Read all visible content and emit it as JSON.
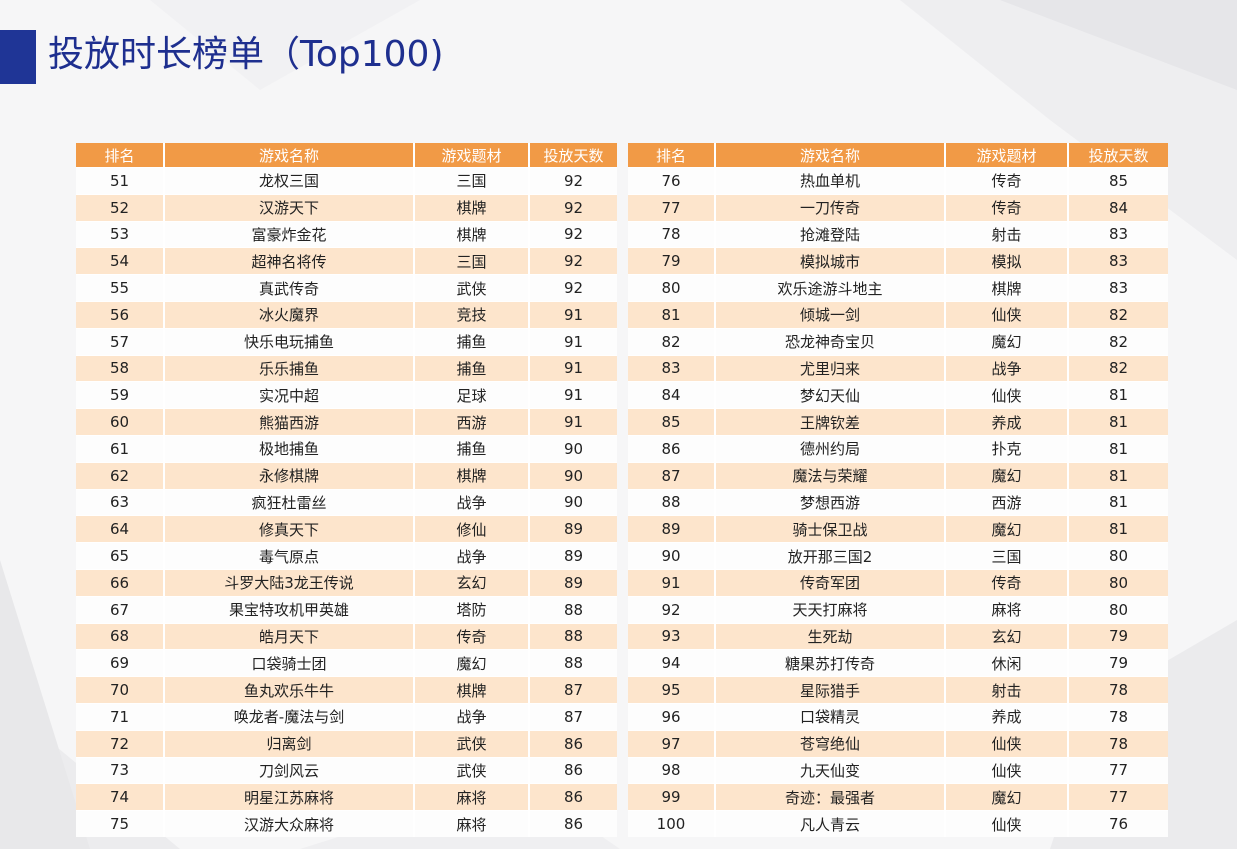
{
  "title": "投放时长榜单（Top100)",
  "colors": {
    "accent": "#1f3596",
    "header": "#f19a46",
    "stripe": "#fde5cc"
  },
  "headers": {
    "rank": "排名",
    "name": "游戏名称",
    "genre": "游戏题材",
    "days": "投放天数"
  },
  "left_rows": [
    {
      "rank": "51",
      "name": "龙权三国",
      "genre": "三国",
      "days": "92"
    },
    {
      "rank": "52",
      "name": "汉游天下",
      "genre": "棋牌",
      "days": "92"
    },
    {
      "rank": "53",
      "name": "富豪炸金花",
      "genre": "棋牌",
      "days": "92"
    },
    {
      "rank": "54",
      "name": "超神名将传",
      "genre": "三国",
      "days": "92"
    },
    {
      "rank": "55",
      "name": "真武传奇",
      "genre": "武侠",
      "days": "92"
    },
    {
      "rank": "56",
      "name": "冰火魔界",
      "genre": "竞技",
      "days": "91"
    },
    {
      "rank": "57",
      "name": "快乐电玩捕鱼",
      "genre": "捕鱼",
      "days": "91"
    },
    {
      "rank": "58",
      "name": "乐乐捕鱼",
      "genre": "捕鱼",
      "days": "91"
    },
    {
      "rank": "59",
      "name": "实况中超",
      "genre": "足球",
      "days": "91"
    },
    {
      "rank": "60",
      "name": "熊猫西游",
      "genre": "西游",
      "days": "91"
    },
    {
      "rank": "61",
      "name": "极地捕鱼",
      "genre": "捕鱼",
      "days": "90"
    },
    {
      "rank": "62",
      "name": "永修棋牌",
      "genre": "棋牌",
      "days": "90"
    },
    {
      "rank": "63",
      "name": "疯狂杜雷丝",
      "genre": "战争",
      "days": "90"
    },
    {
      "rank": "64",
      "name": "修真天下",
      "genre": "修仙",
      "days": "89"
    },
    {
      "rank": "65",
      "name": "毒气原点",
      "genre": "战争",
      "days": "89"
    },
    {
      "rank": "66",
      "name": "斗罗大陆3龙王传说",
      "genre": "玄幻",
      "days": "89"
    },
    {
      "rank": "67",
      "name": "果宝特攻机甲英雄",
      "genre": "塔防",
      "days": "88"
    },
    {
      "rank": "68",
      "name": "皓月天下",
      "genre": "传奇",
      "days": "88"
    },
    {
      "rank": "69",
      "name": "口袋骑士团",
      "genre": "魔幻",
      "days": "88"
    },
    {
      "rank": "70",
      "name": "鱼丸欢乐牛牛",
      "genre": "棋牌",
      "days": "87"
    },
    {
      "rank": "71",
      "name": "唤龙者-魔法与剑",
      "genre": "战争",
      "days": "87"
    },
    {
      "rank": "72",
      "name": "归离剑",
      "genre": "武侠",
      "days": "86"
    },
    {
      "rank": "73",
      "name": "刀剑风云",
      "genre": "武侠",
      "days": "86"
    },
    {
      "rank": "74",
      "name": "明星江苏麻将",
      "genre": "麻将",
      "days": "86"
    },
    {
      "rank": "75",
      "name": "汉游大众麻将",
      "genre": "麻将",
      "days": "86"
    }
  ],
  "right_rows": [
    {
      "rank": "76",
      "name": "热血单机",
      "genre": "传奇",
      "days": "85"
    },
    {
      "rank": "77",
      "name": "一刀传奇",
      "genre": "传奇",
      "days": "84"
    },
    {
      "rank": "78",
      "name": "抢滩登陆",
      "genre": "射击",
      "days": "83"
    },
    {
      "rank": "79",
      "name": "模拟城市",
      "genre": "模拟",
      "days": "83"
    },
    {
      "rank": "80",
      "name": "欢乐途游斗地主",
      "genre": "棋牌",
      "days": "83"
    },
    {
      "rank": "81",
      "name": "倾城一剑",
      "genre": "仙侠",
      "days": "82"
    },
    {
      "rank": "82",
      "name": "恐龙神奇宝贝",
      "genre": "魔幻",
      "days": "82"
    },
    {
      "rank": "83",
      "name": "尤里归来",
      "genre": "战争",
      "days": "82"
    },
    {
      "rank": "84",
      "name": "梦幻天仙",
      "genre": "仙侠",
      "days": "81"
    },
    {
      "rank": "85",
      "name": "王牌钦差",
      "genre": "养成",
      "days": "81"
    },
    {
      "rank": "86",
      "name": "德州约局",
      "genre": "扑克",
      "days": "81"
    },
    {
      "rank": "87",
      "name": "魔法与荣耀",
      "genre": "魔幻",
      "days": "81"
    },
    {
      "rank": "88",
      "name": "梦想西游",
      "genre": "西游",
      "days": "81"
    },
    {
      "rank": "89",
      "name": "骑士保卫战",
      "genre": "魔幻",
      "days": "81"
    },
    {
      "rank": "90",
      "name": "放开那三国2",
      "genre": "三国",
      "days": "80"
    },
    {
      "rank": "91",
      "name": "传奇军团",
      "genre": "传奇",
      "days": "80"
    },
    {
      "rank": "92",
      "name": "天天打麻将",
      "genre": "麻将",
      "days": "80"
    },
    {
      "rank": "93",
      "name": "生死劫",
      "genre": "玄幻",
      "days": "79"
    },
    {
      "rank": "94",
      "name": "糖果苏打传奇",
      "genre": "休闲",
      "days": "79"
    },
    {
      "rank": "95",
      "name": "星际猎手",
      "genre": "射击",
      "days": "78"
    },
    {
      "rank": "96",
      "name": "口袋精灵",
      "genre": "养成",
      "days": "78"
    },
    {
      "rank": "97",
      "name": "苍穹绝仙",
      "genre": "仙侠",
      "days": "78"
    },
    {
      "rank": "98",
      "name": "九天仙变",
      "genre": "仙侠",
      "days": "77"
    },
    {
      "rank": "99",
      "name": "奇迹：最强者",
      "genre": "魔幻",
      "days": "77"
    },
    {
      "rank": "100",
      "name": "凡人青云",
      "genre": "仙侠",
      "days": "76"
    }
  ]
}
